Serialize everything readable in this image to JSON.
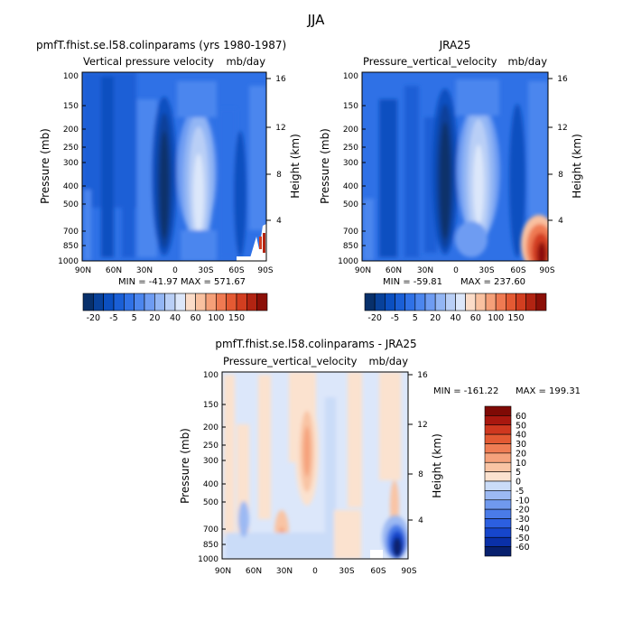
{
  "figure_title": "JJA",
  "chart_data": [
    {
      "type": "heatmap",
      "title": "pmfT.fhist.se.l58.colinparams (yrs 1980-1987)",
      "subtitle": "Vertical pressure velocity",
      "units": "mb/day",
      "xlabel": "",
      "ylabel": "Pressure (mb)",
      "y2label": "Height (km)",
      "x_ticks": [
        "90N",
        "60N",
        "30N",
        "0",
        "30S",
        "60S",
        "90S"
      ],
      "x_range": [
        90,
        -90
      ],
      "y_ticks": [
        1000,
        850,
        700,
        500,
        400,
        300,
        250,
        200,
        150,
        100
      ],
      "y_range": [
        1000,
        100
      ],
      "y_scale": "log",
      "y2_ticks": [
        4,
        8,
        12,
        16
      ],
      "min_label": "MIN = -41.97",
      "max_label": "MAX = 571.67",
      "colorbar": {
        "orientation": "horizontal",
        "levels": [
          -30,
          -25,
          -20,
          -15,
          -10,
          -5,
          0,
          5,
          10,
          20,
          30,
          40,
          50,
          60,
          80,
          100,
          125,
          150
        ],
        "labels": [
          "-20",
          "-5",
          "5",
          "20",
          "40",
          "60",
          "100",
          "150"
        ],
        "colors": [
          "#08306b",
          "#08419a",
          "#0b4fc0",
          "#1a5fd6",
          "#2f71e6",
          "#4c86ee",
          "#6e9cf2",
          "#93b6f4",
          "#b9cff6",
          "#dce7fa",
          "#fbdcc8",
          "#f9c1a0",
          "#f5a079",
          "#ef7a52",
          "#e45a33",
          "#d23e20",
          "#b22412",
          "#8b0f07"
        ]
      }
    },
    {
      "type": "heatmap",
      "title": "JRA25",
      "subtitle": "Pressure_vertical_velocity",
      "units": "mb/day",
      "xlabel": "",
      "ylabel": "Pressure (mb)",
      "y2label": "Height (km)",
      "x_ticks": [
        "90N",
        "60N",
        "30N",
        "0",
        "30S",
        "60S",
        "90S"
      ],
      "x_range": [
        90,
        -90
      ],
      "y_ticks": [
        1000,
        850,
        700,
        500,
        400,
        300,
        250,
        200,
        150,
        100
      ],
      "y_range": [
        1000,
        100
      ],
      "y_scale": "log",
      "y2_ticks": [
        4,
        8,
        12,
        16
      ],
      "min_label": "MIN = -59.81",
      "max_label": "MAX = 237.60",
      "colorbar": {
        "orientation": "horizontal",
        "levels": [
          -30,
          -25,
          -20,
          -15,
          -10,
          -5,
          0,
          5,
          10,
          20,
          30,
          40,
          50,
          60,
          80,
          100,
          125,
          150
        ],
        "labels": [
          "-20",
          "-5",
          "5",
          "20",
          "40",
          "60",
          "100",
          "150"
        ],
        "colors": [
          "#08306b",
          "#08419a",
          "#0b4fc0",
          "#1a5fd6",
          "#2f71e6",
          "#4c86ee",
          "#6e9cf2",
          "#93b6f4",
          "#b9cff6",
          "#dce7fa",
          "#fbdcc8",
          "#f9c1a0",
          "#f5a079",
          "#ef7a52",
          "#e45a33",
          "#d23e20",
          "#b22412",
          "#8b0f07"
        ]
      }
    },
    {
      "type": "heatmap",
      "title": "pmfT.fhist.se.l58.colinparams - JRA25",
      "subtitle": "Pressure_vertical_velocity",
      "units": "mb/day",
      "xlabel": "",
      "ylabel": "Pressure (mb)",
      "y2label": "Height (km)",
      "x_ticks": [
        "90N",
        "60N",
        "30N",
        "0",
        "30S",
        "60S",
        "90S"
      ],
      "x_range": [
        90,
        -90
      ],
      "y_ticks": [
        1000,
        850,
        700,
        500,
        400,
        300,
        250,
        200,
        150,
        100
      ],
      "y_range": [
        1000,
        100
      ],
      "y_scale": "log",
      "y2_ticks": [
        4,
        8,
        12,
        16
      ],
      "min_label": "MIN = -161.22",
      "max_label": "MAX = 199.31",
      "colorbar": {
        "orientation": "vertical",
        "levels": [
          -60,
          -50,
          -40,
          -30,
          -20,
          -10,
          -5,
          0,
          5,
          10,
          20,
          30,
          40,
          50,
          60
        ],
        "labels": [
          "-60",
          "-50",
          "-40",
          "-30",
          "-20",
          "-10",
          "-5",
          "0",
          "5",
          "10",
          "20",
          "30",
          "40",
          "50",
          "60"
        ],
        "colors": [
          "#08206e",
          "#0a30a8",
          "#1646cc",
          "#2c5fe0",
          "#4a7be8",
          "#7099ee",
          "#9cb9f3",
          "#cadcf8",
          "#fbe2cf",
          "#f9c4a4",
          "#f5a27c",
          "#ef7d54",
          "#e35a33",
          "#cf381f",
          "#a9180f",
          "#7f0a05"
        ]
      }
    }
  ]
}
